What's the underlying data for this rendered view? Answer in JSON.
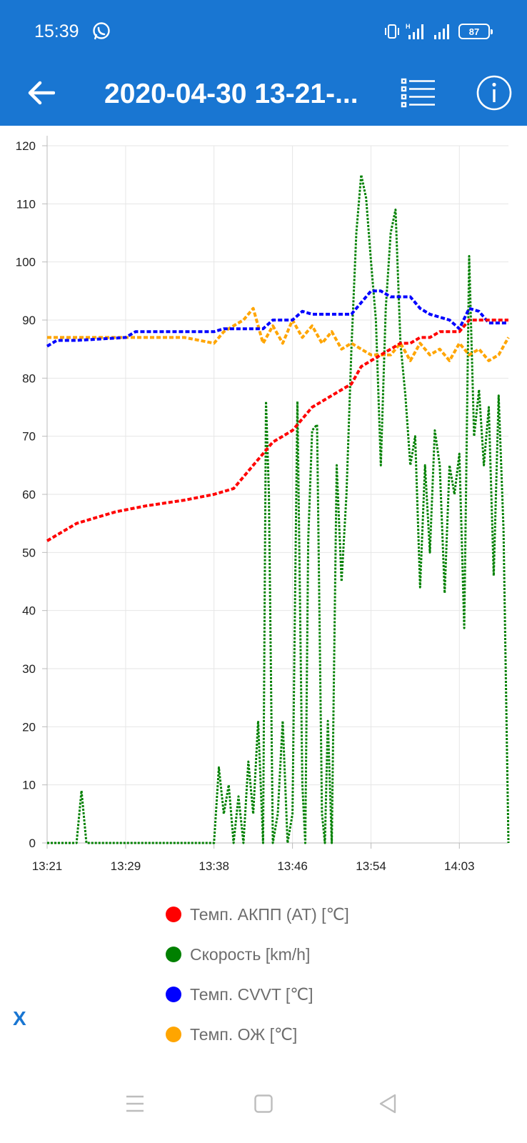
{
  "status_bar": {
    "time": "15:39",
    "battery": "87",
    "icons": [
      "whatsapp-icon",
      "vibrate-icon",
      "signal-h-icon",
      "signal-icon",
      "battery-icon"
    ]
  },
  "app_bar": {
    "title": "2020-04-30 13-21-...",
    "icons": [
      "back-arrow-icon",
      "list-icon",
      "info-icon"
    ]
  },
  "colors": {
    "bar": "#1976d2",
    "at_temp": "#ff0000",
    "speed": "#008000",
    "cvvt": "#0000ff",
    "coolant": "#ffa500"
  },
  "chart_data": {
    "type": "line",
    "x_tick_labels": [
      "13:21",
      "13:29",
      "13:38",
      "13:46",
      "13:54",
      "14:03"
    ],
    "xlim": [
      "13:21",
      "14:08"
    ],
    "ylim": [
      0,
      120
    ],
    "y_ticks": [
      0,
      10,
      20,
      30,
      40,
      50,
      60,
      70,
      80,
      90,
      100,
      110,
      120
    ],
    "grid": true,
    "legend_position": "bottom",
    "line_style": "dotted",
    "series": [
      {
        "name": "Темп. АКПП (AT) [℃]",
        "color": "#ff0000",
        "points": [
          [
            "13:21",
            52
          ],
          [
            "13:22",
            53
          ],
          [
            "13:23",
            54
          ],
          [
            "13:24",
            55
          ],
          [
            "13:26",
            56
          ],
          [
            "13:28",
            57
          ],
          [
            "13:31",
            58
          ],
          [
            "13:35",
            59
          ],
          [
            "13:38",
            60
          ],
          [
            "13:40",
            61
          ],
          [
            "13:41",
            63
          ],
          [
            "13:42",
            65
          ],
          [
            "13:43",
            67
          ],
          [
            "13:44",
            69
          ],
          [
            "13:45",
            70
          ],
          [
            "13:46",
            71
          ],
          [
            "13:47",
            73
          ],
          [
            "13:48",
            75
          ],
          [
            "13:49",
            76
          ],
          [
            "13:50",
            77
          ],
          [
            "13:51",
            78
          ],
          [
            "13:52",
            79
          ],
          [
            "13:53",
            82
          ],
          [
            "13:54",
            83
          ],
          [
            "13:55",
            84
          ],
          [
            "13:56",
            85
          ],
          [
            "13:57",
            86
          ],
          [
            "13:58",
            86
          ],
          [
            "13:59",
            87
          ],
          [
            "14:00",
            87
          ],
          [
            "14:01",
            88
          ],
          [
            "14:03",
            88
          ],
          [
            "14:04",
            90
          ],
          [
            "14:08",
            90
          ]
        ]
      },
      {
        "name": "Скорость [km/h]",
        "color": "#008000",
        "points": [
          [
            "13:21",
            0
          ],
          [
            "13:24",
            0
          ],
          [
            "13:24.5",
            9
          ],
          [
            "13:25",
            0
          ],
          [
            "13:38",
            0
          ],
          [
            "13:38.5",
            13
          ],
          [
            "13:39",
            5
          ],
          [
            "13:39.5",
            10
          ],
          [
            "13:40",
            0
          ],
          [
            "13:40.5",
            8
          ],
          [
            "13:41",
            0
          ],
          [
            "13:41.5",
            14
          ],
          [
            "13:42",
            5
          ],
          [
            "13:42.5",
            21
          ],
          [
            "13:43",
            0
          ],
          [
            "13:43.3",
            76
          ],
          [
            "13:43.6",
            60
          ],
          [
            "13:44",
            0
          ],
          [
            "13:44.5",
            5
          ],
          [
            "13:45",
            21
          ],
          [
            "13:45.5",
            0
          ],
          [
            "13:46",
            5
          ],
          [
            "13:46.5",
            76
          ],
          [
            "13:47",
            10
          ],
          [
            "13:47.3",
            0
          ],
          [
            "13:47.6",
            52
          ],
          [
            "13:48",
            71
          ],
          [
            "13:48.5",
            72
          ],
          [
            "13:49",
            5
          ],
          [
            "13:49.3",
            0
          ],
          [
            "13:49.6",
            21
          ],
          [
            "13:50",
            0
          ],
          [
            "13:50.5",
            65
          ],
          [
            "13:51",
            45
          ],
          [
            "13:51.5",
            60
          ],
          [
            "13:52",
            85
          ],
          [
            "13:52.5",
            105
          ],
          [
            "13:53",
            115
          ],
          [
            "13:53.5",
            111
          ],
          [
            "13:54",
            100
          ],
          [
            "13:54.5",
            90
          ],
          [
            "13:55",
            65
          ],
          [
            "13:55.5",
            92
          ],
          [
            "13:56",
            105
          ],
          [
            "13:56.5",
            109
          ],
          [
            "13:57",
            86
          ],
          [
            "13:57.5",
            77
          ],
          [
            "13:58",
            65
          ],
          [
            "13:58.5",
            70
          ],
          [
            "13:59",
            44
          ],
          [
            "13:59.5",
            65
          ],
          [
            "14:00",
            50
          ],
          [
            "14:00.5",
            71
          ],
          [
            "14:01",
            65
          ],
          [
            "14:01.5",
            43
          ],
          [
            "14:02",
            65
          ],
          [
            "14:02.5",
            60
          ],
          [
            "14:03",
            67
          ],
          [
            "14:03.5",
            37
          ],
          [
            "14:04",
            101
          ],
          [
            "14:04.5",
            70
          ],
          [
            "14:05",
            78
          ],
          [
            "14:05.5",
            65
          ],
          [
            "14:06",
            75
          ],
          [
            "14:06.5",
            46
          ],
          [
            "14:07",
            77
          ],
          [
            "14:07.5",
            54
          ],
          [
            "14:08",
            0
          ]
        ]
      },
      {
        "name": "Темп. CVVT [℃]",
        "color": "#0000ff",
        "points": [
          [
            "13:21",
            85.5
          ],
          [
            "13:22",
            86.5
          ],
          [
            "13:24",
            86.5
          ],
          [
            "13:29",
            87
          ],
          [
            "13:30",
            88
          ],
          [
            "13:38",
            88
          ],
          [
            "13:39",
            88.5
          ],
          [
            "13:43",
            88.5
          ],
          [
            "13:44",
            90
          ],
          [
            "13:46",
            90
          ],
          [
            "13:47",
            91.5
          ],
          [
            "13:48",
            91
          ],
          [
            "13:52",
            91
          ],
          [
            "13:53",
            93
          ],
          [
            "13:54",
            95
          ],
          [
            "13:55",
            95
          ],
          [
            "13:56",
            94
          ],
          [
            "13:58",
            94
          ],
          [
            "13:59",
            92
          ],
          [
            "14:00",
            91
          ],
          [
            "14:02",
            90
          ],
          [
            "14:03",
            88.5
          ],
          [
            "14:04",
            92
          ],
          [
            "14:05",
            91.5
          ],
          [
            "14:06",
            89.5
          ],
          [
            "14:08",
            89.5
          ]
        ]
      },
      {
        "name": "Темп. ОЖ [℃]",
        "color": "#ffa500",
        "points": [
          [
            "13:21",
            87
          ],
          [
            "13:35",
            87
          ],
          [
            "13:38",
            86
          ],
          [
            "13:39",
            88
          ],
          [
            "13:40",
            89
          ],
          [
            "13:41",
            90
          ],
          [
            "13:42",
            92
          ],
          [
            "13:43",
            86
          ],
          [
            "13:44",
            89
          ],
          [
            "13:45",
            86
          ],
          [
            "13:46",
            90
          ],
          [
            "13:47",
            87
          ],
          [
            "13:48",
            89
          ],
          [
            "13:49",
            86
          ],
          [
            "13:50",
            88
          ],
          [
            "13:51",
            85
          ],
          [
            "13:52",
            86
          ],
          [
            "13:53",
            85
          ],
          [
            "13:54",
            84
          ],
          [
            "13:56",
            84
          ],
          [
            "13:57",
            86
          ],
          [
            "13:58",
            83
          ],
          [
            "13:59",
            86
          ],
          [
            "14:00",
            84
          ],
          [
            "14:01",
            85
          ],
          [
            "14:02",
            83
          ],
          [
            "14:03",
            86
          ],
          [
            "14:04",
            84
          ],
          [
            "14:05",
            85
          ],
          [
            "14:06",
            83
          ],
          [
            "14:07",
            84
          ],
          [
            "14:08",
            87
          ]
        ]
      }
    ]
  },
  "legend": {
    "items": [
      {
        "label": "Темп. АКПП (AT) [℃]",
        "color": "#ff0000"
      },
      {
        "label": "Скорость [km/h]",
        "color": "#008000"
      },
      {
        "label": "Темп. CVVT [℃]",
        "color": "#0000ff"
      },
      {
        "label": "Темп. ОЖ [℃]",
        "color": "#ffa500"
      }
    ]
  },
  "close_label": "X",
  "nav_bar": {
    "icons": [
      "menu-icon",
      "home-icon",
      "back-triangle-icon"
    ]
  }
}
